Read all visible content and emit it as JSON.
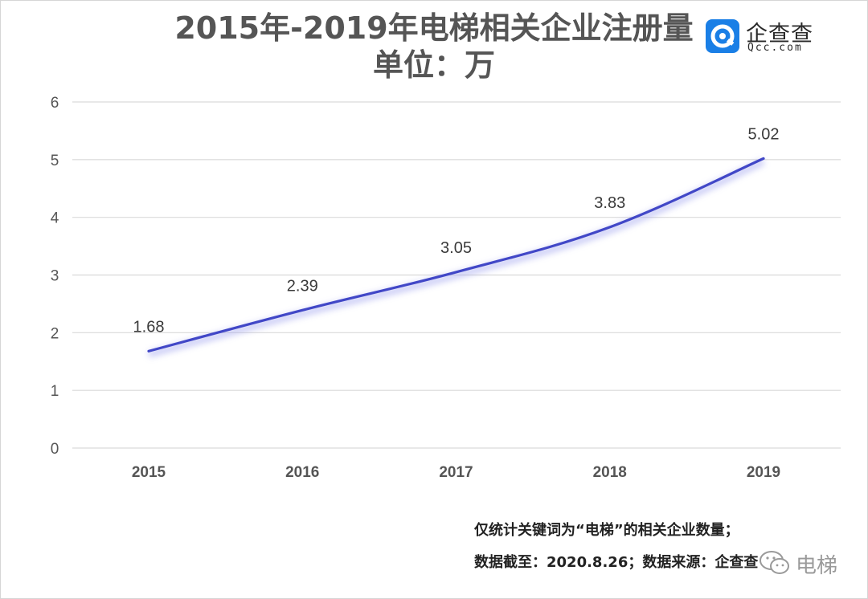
{
  "header": {
    "title_line1": "2015年-2019年电梯相关企业注册量",
    "title_line2": "单位：万"
  },
  "logo": {
    "name_cn": "企查查",
    "name_en": "Qcc.com",
    "icon": "qcc-logo-icon",
    "color": "#1a7fe6"
  },
  "chart_data": {
    "type": "line",
    "categories": [
      "2015",
      "2016",
      "2017",
      "2018",
      "2019"
    ],
    "series": [
      {
        "values": [
          1.68,
          2.39,
          3.05,
          3.83,
          5.02
        ]
      }
    ],
    "data_labels": [
      "1.68",
      "2.39",
      "3.05",
      "3.83",
      "5.02"
    ],
    "y_ticks": [
      "0",
      "1",
      "2",
      "3",
      "4",
      "5",
      "6"
    ],
    "ylim": [
      0,
      6
    ],
    "grid": true,
    "line_color": "#4147c7",
    "smooth": true
  },
  "footnotes": {
    "line1": "仅统计关键词为“电梯”的相关企业数量；",
    "line2": "数据截至：2020.8.26；数据来源：企查查"
  },
  "watermark": {
    "text": "电梯",
    "icon": "wechat-icon"
  }
}
